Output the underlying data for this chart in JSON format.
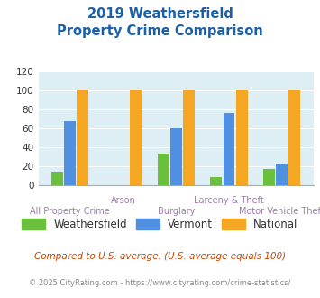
{
  "title_line1": "2019 Weathersfield",
  "title_line2": "Property Crime Comparison",
  "categories": [
    "All Property Crime",
    "Arson",
    "Burglary",
    "Larceny & Theft",
    "Motor Vehicle Theft"
  ],
  "weathersfield": [
    13,
    0,
    33,
    8,
    17
  ],
  "vermont": [
    68,
    0,
    60,
    76,
    22
  ],
  "national": [
    100,
    100,
    100,
    100,
    100
  ],
  "color_weathersfield": "#6abf3c",
  "color_vermont": "#4f90e0",
  "color_national": "#f5a623",
  "ylim": [
    0,
    120
  ],
  "yticks": [
    0,
    20,
    40,
    60,
    80,
    100,
    120
  ],
  "background_color": "#ddeef5",
  "fig_background": "#ffffff",
  "title_color": "#1a5fa8",
  "xlabel_color": "#9b7fa8",
  "legend_labels": [
    "Weathersfield",
    "Vermont",
    "National"
  ],
  "footnote1": "Compared to U.S. average. (U.S. average equals 100)",
  "footnote2": "© 2025 CityRating.com - https://www.cityrating.com/crime-statistics/",
  "footnote1_color": "#cc4400",
  "footnote2_color": "#888888",
  "bar_width": 0.22
}
